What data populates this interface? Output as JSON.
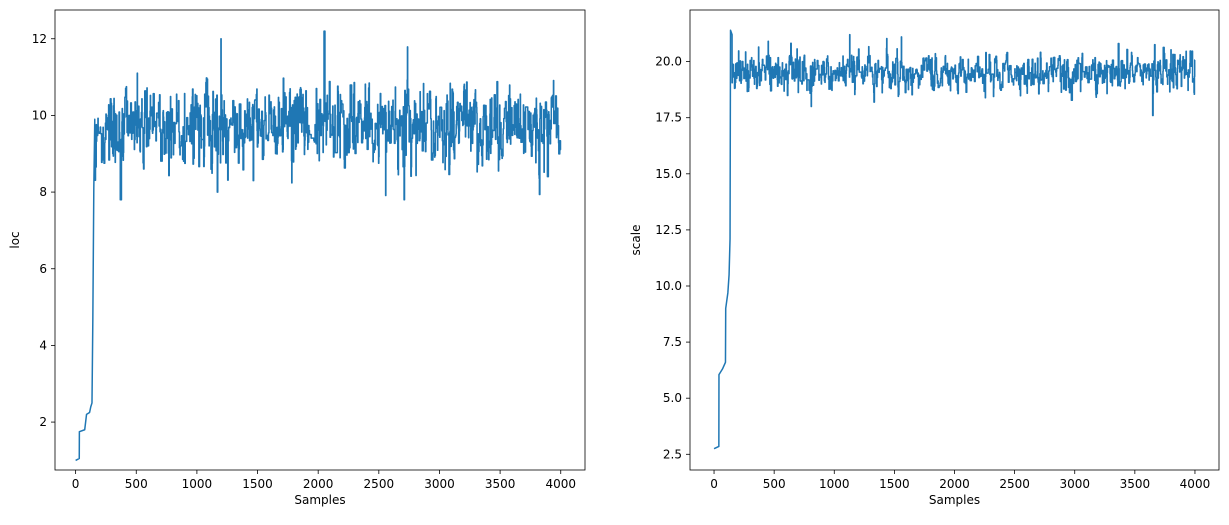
{
  "chart_data": [
    {
      "type": "line",
      "title": "",
      "xlabel": "Samples",
      "ylabel": "loc",
      "xlim": [
        -170,
        4200
      ],
      "ylim": [
        0.75,
        12.75
      ],
      "xticks": [
        0,
        500,
        1000,
        1500,
        2000,
        2500,
        3000,
        3500,
        4000
      ],
      "yticks": [
        2,
        4,
        6,
        8,
        10,
        12
      ],
      "xtick_labels": [
        "0",
        "500",
        "1000",
        "1500",
        "2000",
        "2500",
        "3000",
        "3500",
        "4000"
      ],
      "ytick_labels": [
        "2",
        "4",
        "6",
        "8",
        "10",
        "12"
      ],
      "grid": false,
      "legend": null,
      "color": "#1f77b4",
      "trace": {
        "n_samples": 4000,
        "burnin_path": [
          [
            0,
            1.0
          ],
          [
            30,
            1.05
          ],
          [
            31,
            1.75
          ],
          [
            75,
            1.8
          ],
          [
            90,
            2.2
          ],
          [
            115,
            2.25
          ],
          [
            125,
            2.4
          ],
          [
            135,
            2.5
          ],
          [
            142,
            4.7
          ],
          [
            150,
            8.1
          ],
          [
            158,
            9.9
          ]
        ],
        "stationary_mean": 9.75,
        "stationary_sd": 0.55,
        "stationary_min": 7.8,
        "stationary_max": 12.2,
        "extremes": [
          [
            1200,
            12.0
          ],
          [
            2050,
            12.2
          ],
          [
            1170,
            8.0
          ],
          [
            370,
            7.8
          ],
          [
            2710,
            7.8
          ]
        ]
      }
    },
    {
      "type": "line",
      "title": "",
      "xlabel": "Samples",
      "ylabel": "scale",
      "xlim": [
        -200,
        4200
      ],
      "ylim": [
        1.8,
        22.3
      ],
      "xticks": [
        0,
        500,
        1000,
        1500,
        2000,
        2500,
        3000,
        3500,
        4000
      ],
      "yticks": [
        2.5,
        5.0,
        7.5,
        10.0,
        12.5,
        15.0,
        17.5,
        20.0
      ],
      "xtick_labels": [
        "0",
        "500",
        "1000",
        "1500",
        "2000",
        "2500",
        "3000",
        "3500",
        "4000"
      ],
      "ytick_labels": [
        "2.5",
        "5.0",
        "7.5",
        "10.0",
        "12.5",
        "15.0",
        "17.5",
        "20.0"
      ],
      "grid": false,
      "legend": null,
      "color": "#1f77b4",
      "trace": {
        "n_samples": 4000,
        "burnin_path": [
          [
            0,
            2.75
          ],
          [
            40,
            2.85
          ],
          [
            41,
            6.05
          ],
          [
            70,
            6.3
          ],
          [
            95,
            6.6
          ],
          [
            97,
            9.0
          ],
          [
            115,
            9.7
          ],
          [
            125,
            10.5
          ],
          [
            133,
            12.1
          ],
          [
            137,
            21.4
          ],
          [
            150,
            21.2
          ]
        ],
        "stationary_mean": 19.5,
        "stationary_sd": 0.42,
        "stationary_min": 17.6,
        "stationary_max": 21.2,
        "extremes": [
          [
            1130,
            21.2
          ],
          [
            1560,
            21.1
          ],
          [
            3650,
            17.6
          ],
          [
            810,
            18.0
          ]
        ]
      }
    }
  ]
}
